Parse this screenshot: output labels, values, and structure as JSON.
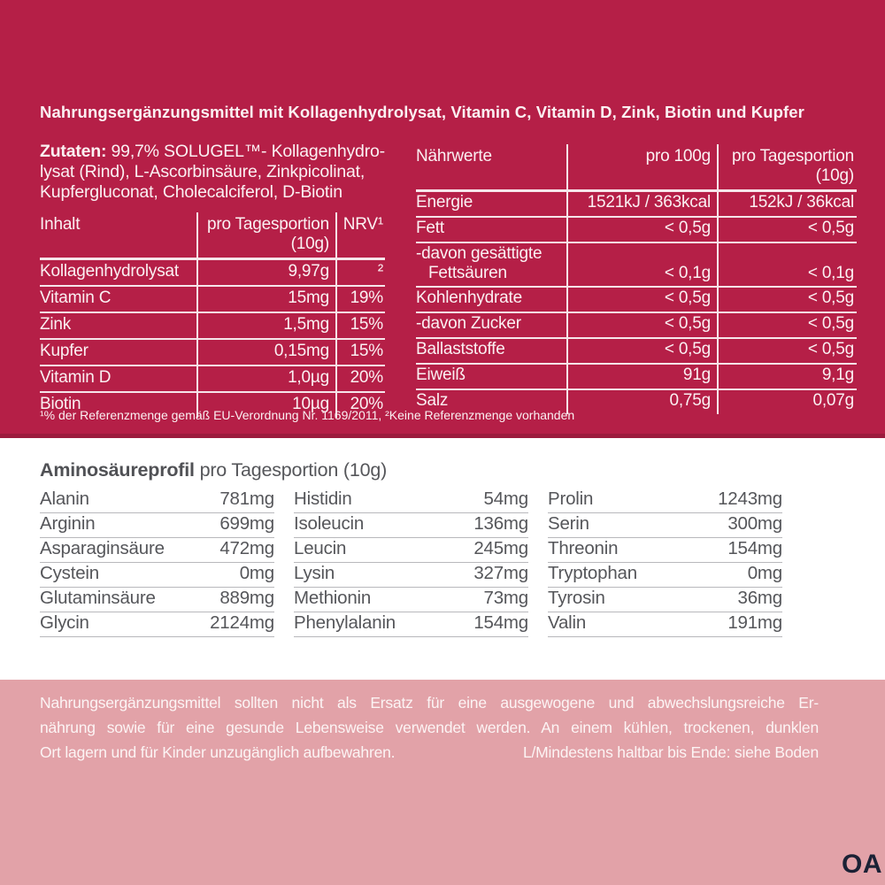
{
  "colors": {
    "crimson_bg": "#b51f47",
    "crimson_edge": "#9c1b3d",
    "pink_bg": "#e2a2a8",
    "gray_text": "#55565a",
    "brand_navy": "#1b2135"
  },
  "title": "Nahrungsergänzungsmittel mit Kollagenhydrolysat, Vitamin C, Vitamin D, Zink, Biotin und Kupfer",
  "zutaten": {
    "label": "Zutaten:",
    "line1_rest": " 99,7% SOLUGEL™- Kollagenhydro-",
    "line2": "lysat (Rind), L-Ascorbinsäure, Zinkpicolinat,",
    "line3": "Kupfergluconat, Cholecalciferol, D-Biotin"
  },
  "inhalt_table": {
    "headers": {
      "col1": "Inhalt",
      "col2_line1": "pro Tagesportion",
      "col2_line2": "(10g)",
      "col3": "NRV¹"
    },
    "rows": [
      {
        "name": "Kollagenhydrolysat",
        "value": "9,97g",
        "nrv": "²"
      },
      {
        "name": "Vitamin C",
        "value": "15mg",
        "nrv": "19%"
      },
      {
        "name": "Zink",
        "value": "1,5mg",
        "nrv": "15%"
      },
      {
        "name": "Kupfer",
        "value": "0,15mg",
        "nrv": "15%"
      },
      {
        "name": "Vitamin D",
        "value": "1,0µg",
        "nrv": "20%"
      },
      {
        "name": "Biotin",
        "value": "10µg",
        "nrv": "20%"
      }
    ]
  },
  "naehrwerte_table": {
    "headers": {
      "col1": "Nährwerte",
      "col2": "pro 100g",
      "col3_line1": "pro Tagesportion",
      "col3_line2": "(10g)"
    },
    "rows": [
      {
        "name": "Energie",
        "per100": "1521kJ / 363kcal",
        "portion": "152kJ / 36kcal"
      },
      {
        "name": "Fett",
        "per100": "< 0,5g",
        "portion": "< 0,5g"
      },
      {
        "name1": "-davon gesättigte",
        "name2": "Fettsäuren",
        "per100": "< 0,1g",
        "portion": "< 0,1g"
      },
      {
        "name": "Kohlenhydrate",
        "per100": "< 0,5g",
        "portion": "< 0,5g"
      },
      {
        "name": "-davon Zucker",
        "per100": "< 0,5g",
        "portion": "< 0,5g"
      },
      {
        "name": "Ballaststoffe",
        "per100": "< 0,5g",
        "portion": "< 0,5g"
      },
      {
        "name": "Eiweiß",
        "per100": "91g",
        "portion": "9,1g"
      },
      {
        "name": "Salz",
        "per100": "0,75g",
        "portion": "0,07g"
      }
    ]
  },
  "footnote": "¹% der Referenzmenge gemäß EU-Verordnung Nr. 1169/2011, ²Keine Referenzmenge vorhanden",
  "amino": {
    "heading_bold": "Aminosäureprofil",
    "heading_rest": " pro Tagesportion (10g)",
    "col1": [
      {
        "name": "Alanin",
        "value": "781mg"
      },
      {
        "name": "Arginin",
        "value": "699mg"
      },
      {
        "name": "Asparaginsäure",
        "value": "472mg"
      },
      {
        "name": "Cystein",
        "value": "0mg"
      },
      {
        "name": "Glutaminsäure",
        "value": "889mg"
      },
      {
        "name": "Glycin",
        "value": "2124mg"
      }
    ],
    "col2": [
      {
        "name": "Histidin",
        "value": "54mg"
      },
      {
        "name": "Isoleucin",
        "value": "136mg"
      },
      {
        "name": "Leucin",
        "value": "245mg"
      },
      {
        "name": "Lysin",
        "value": "327mg"
      },
      {
        "name": "Methionin",
        "value": "73mg"
      },
      {
        "name": "Phenylalanin",
        "value": "154mg"
      }
    ],
    "col3": [
      {
        "name": "Prolin",
        "value": "1243mg"
      },
      {
        "name": "Serin",
        "value": "300mg"
      },
      {
        "name": "Threonin",
        "value": "154mg"
      },
      {
        "name": "Tryptophan",
        "value": "0mg"
      },
      {
        "name": "Tyrosin",
        "value": "36mg"
      },
      {
        "name": "Valin",
        "value": "191mg"
      }
    ]
  },
  "disclaimer": {
    "line1": "Nahrungsergänzungsmittel sollten nicht als Ersatz für eine ausgewogene und abwechslungsreiche Er-",
    "line2": "nährung sowie für eine gesunde Lebensweise verwendet werden. An einem kühlen, trockenen, dunklen",
    "line3_left": "Ort lagern und für Kinder unzugänglich aufbewahren.",
    "line3_right": "L/Mindestens haltbar bis Ende: siehe Boden"
  },
  "brand": "OA"
}
